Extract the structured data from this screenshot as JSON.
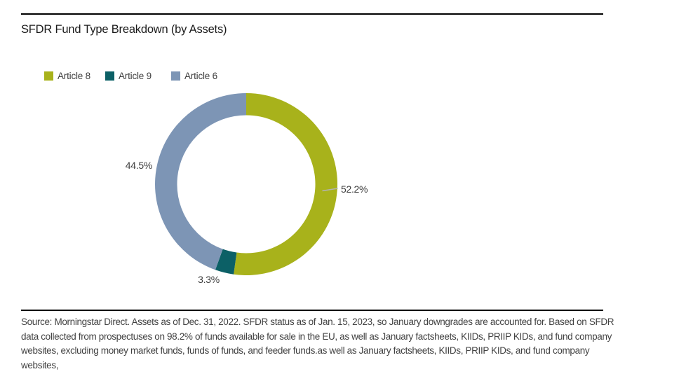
{
  "title": "SFDR Fund Type Breakdown (by Assets)",
  "legend": [
    {
      "label": "Article 8",
      "color": "#a8b21b"
    },
    {
      "label": "Article 9",
      "color": "#0c6066"
    },
    {
      "label": "Article 6",
      "color": "#7d95b5"
    }
  ],
  "chart_data": {
    "type": "pie",
    "subtype": "donut",
    "title": "SFDR Fund Type Breakdown (by Assets)",
    "categories": [
      "Article 8",
      "Article 9",
      "Article 6"
    ],
    "values": [
      52.2,
      3.3,
      44.5
    ],
    "unit": "%",
    "colors": [
      "#a8b21b",
      "#0c6066",
      "#7d95b5"
    ],
    "slice_labels": [
      "52.2%",
      "3.3%",
      "44.5%"
    ],
    "start_angle_deg": 0,
    "direction": "clockwise",
    "legend_position": "top-left",
    "leader_line_color": "#b3b3b3"
  },
  "footer_lines": [
    "Source: Morningstar Direct. Assets as of Dec. 31, 2022. SFDR status as of Jan. 15, 2023, so January downgrades are accounted for. Based on SFDR",
    "data collected from prospectuses on 98.2% of funds available for sale in the EU, as well as January factsheets, KIIDs, PRIIP KIDs, and fund company",
    "websites, excluding money market funds, funds of funds, and feeder funds.as well as January factsheets, KIIDs, PRIIP KIDs, and fund company",
    "websites,"
  ]
}
